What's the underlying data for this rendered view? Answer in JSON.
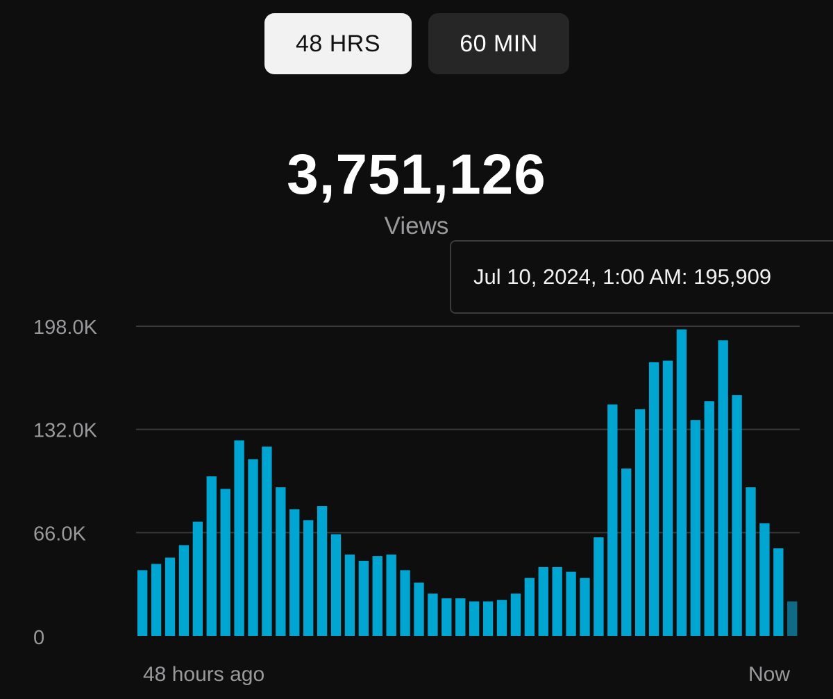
{
  "tabs": {
    "tab_48": "48 HRS",
    "tab_60": "60 MIN",
    "selected": "48 HRS"
  },
  "summary": {
    "total": "3,751,126",
    "label": "Views"
  },
  "tooltip": {
    "text": "Jul 10, 2024, 1:00 AM: 195,909"
  },
  "colors": {
    "bar": "#00a6d1",
    "bar_current": "#0f6a86",
    "grid": "#3a3a3c",
    "background": "#0e0e0f"
  },
  "chart_data": {
    "type": "bar",
    "ylim": [
      0,
      198000
    ],
    "y_ticks": [
      {
        "value": 198000,
        "label": "198.0K"
      },
      {
        "value": 132000,
        "label": "132.0K"
      },
      {
        "value": 66000,
        "label": "66.0K"
      },
      {
        "value": 0,
        "label": "0"
      }
    ],
    "x_labels": {
      "start": "48 hours ago",
      "end": "Now"
    },
    "grid": true,
    "values": [
      42000,
      46000,
      50000,
      58000,
      73000,
      102000,
      94000,
      125000,
      113000,
      121000,
      95000,
      81000,
      74000,
      83000,
      65000,
      52000,
      48000,
      51000,
      52000,
      42000,
      34000,
      27000,
      24000,
      24000,
      22000,
      22000,
      23000,
      27000,
      37000,
      44000,
      44000,
      41000,
      37000,
      63000,
      148000,
      107000,
      145000,
      175000,
      176000,
      196000,
      138000,
      150000,
      189000,
      154000,
      95000,
      72000,
      56000,
      22000
    ],
    "current_index": 47
  }
}
